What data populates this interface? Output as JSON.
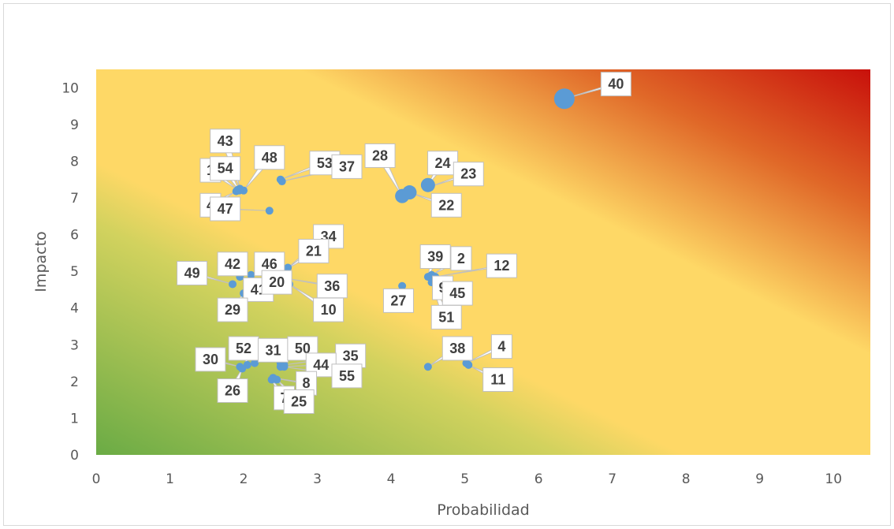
{
  "chart_data": {
    "type": "scatter",
    "title": "",
    "xlabel": "Probabilidad",
    "ylabel": "Impacto",
    "xlim": [
      0,
      10.5
    ],
    "ylim": [
      0,
      10.5
    ],
    "xticks": [
      "0",
      "1",
      "2",
      "3",
      "4",
      "5",
      "6",
      "7",
      "8",
      "9",
      "10"
    ],
    "yticks": [
      "0",
      "1",
      "2",
      "3",
      "4",
      "5",
      "6",
      "7",
      "8",
      "9",
      "10"
    ],
    "background": "green-yellow-red risk gradient (low bottom-left, high top-right)",
    "marker_color": "#5b9bd5",
    "points": [
      {
        "id": "40",
        "x": 6.35,
        "y": 9.7,
        "size": "large",
        "label": "40",
        "label_x": 7.05,
        "label_y": 10.1
      },
      {
        "id": "28",
        "x": 4.15,
        "y": 7.05,
        "size": "medium",
        "label": "28",
        "label_x": 3.85,
        "label_y": 8.15
      },
      {
        "id": "22",
        "x": 4.25,
        "y": 7.15,
        "size": "medium",
        "label": "22",
        "label_x": 4.75,
        "label_y": 6.8
      },
      {
        "id": "24",
        "x": 4.5,
        "y": 7.35,
        "size": "medium",
        "label": "24",
        "label_x": 4.7,
        "label_y": 7.95
      },
      {
        "id": "23",
        "x": 4.52,
        "y": 7.3,
        "size": "small",
        "label": "23",
        "label_x": 5.05,
        "label_y": 7.65
      },
      {
        "id": "53",
        "x": 2.5,
        "y": 7.5,
        "size": "small",
        "label": "53",
        "label_x": 3.1,
        "label_y": 7.95
      },
      {
        "id": "37",
        "x": 2.52,
        "y": 7.45,
        "size": "small",
        "label": "37",
        "label_x": 3.4,
        "label_y": 7.85
      },
      {
        "id": "48",
        "x": 2.0,
        "y": 7.2,
        "size": "small",
        "label": "48",
        "label_x": 2.35,
        "label_y": 8.1
      },
      {
        "id": "43",
        "x": 1.95,
        "y": 7.25,
        "size": "small",
        "label": "43",
        "label_x": 1.75,
        "label_y": 8.55
      },
      {
        "id": "1",
        "x": 1.92,
        "y": 7.22,
        "size": "small",
        "label": "1",
        "label_x": 1.55,
        "label_y": 7.75
      },
      {
        "id": "54",
        "x": 1.94,
        "y": 7.2,
        "size": "small",
        "label": "54",
        "label_x": 1.75,
        "label_y": 7.8
      },
      {
        "id": "4b",
        "x": 1.9,
        "y": 7.18,
        "size": "small",
        "label": "4",
        "label_x": 1.55,
        "label_y": 6.8
      },
      {
        "id": "47",
        "x": 2.35,
        "y": 6.65,
        "size": "small",
        "label": "47",
        "label_x": 1.75,
        "label_y": 6.7
      },
      {
        "id": "34",
        "x": 2.6,
        "y": 5.1,
        "size": "small",
        "label": "34",
        "label_x": 3.15,
        "label_y": 5.95
      },
      {
        "id": "21",
        "x": 2.58,
        "y": 5.05,
        "size": "small",
        "label": "21",
        "label_x": 2.95,
        "label_y": 5.55
      },
      {
        "id": "46",
        "x": 2.1,
        "y": 4.9,
        "size": "small",
        "label": "46",
        "label_x": 2.35,
        "label_y": 5.2
      },
      {
        "id": "42",
        "x": 1.95,
        "y": 4.85,
        "size": "small",
        "label": "42",
        "label_x": 1.85,
        "label_y": 5.2
      },
      {
        "id": "49",
        "x": 1.85,
        "y": 4.65,
        "size": "small",
        "label": "49",
        "label_x": 1.3,
        "label_y": 4.95
      },
      {
        "id": "41",
        "x": 2.1,
        "y": 4.75,
        "size": "small",
        "label": "41",
        "label_x": 2.2,
        "label_y": 4.5
      },
      {
        "id": "20",
        "x": 2.55,
        "y": 4.7,
        "size": "small",
        "label": "20",
        "label_x": 2.45,
        "label_y": 4.7
      },
      {
        "id": "36",
        "x": 2.6,
        "y": 4.8,
        "size": "small",
        "label": "36",
        "label_x": 3.2,
        "label_y": 4.6
      },
      {
        "id": "10",
        "x": 2.62,
        "y": 4.65,
        "size": "small",
        "label": "10",
        "label_x": 3.15,
        "label_y": 3.95
      },
      {
        "id": "29",
        "x": 2.0,
        "y": 4.4,
        "size": "small",
        "label": "29",
        "label_x": 1.85,
        "label_y": 3.95
      },
      {
        "id": "27",
        "x": 4.15,
        "y": 4.6,
        "size": "small",
        "label": "27",
        "label_x": 4.1,
        "label_y": 4.2
      },
      {
        "id": "39",
        "x": 4.5,
        "y": 4.85,
        "size": "small",
        "label": "39",
        "label_x": 4.6,
        "label_y": 5.4
      },
      {
        "id": "2",
        "x": 4.55,
        "y": 4.9,
        "size": "small",
        "label": "2",
        "label_x": 4.95,
        "label_y": 5.35
      },
      {
        "id": "12",
        "x": 4.6,
        "y": 4.85,
        "size": "small",
        "label": "12",
        "label_x": 5.5,
        "label_y": 5.15
      },
      {
        "id": "9",
        "x": 4.62,
        "y": 4.8,
        "size": "small",
        "label": "9",
        "label_x": 4.7,
        "label_y": 4.55
      },
      {
        "id": "45",
        "x": 4.58,
        "y": 4.75,
        "size": "small",
        "label": "45",
        "label_x": 4.9,
        "label_y": 4.4
      },
      {
        "id": "51",
        "x": 4.55,
        "y": 4.7,
        "size": "small",
        "label": "51",
        "label_x": 4.75,
        "label_y": 3.75
      },
      {
        "id": "38",
        "x": 4.5,
        "y": 2.4,
        "size": "small",
        "label": "38",
        "label_x": 4.9,
        "label_y": 2.9
      },
      {
        "id": "4",
        "x": 5.02,
        "y": 2.5,
        "size": "small",
        "label": "4",
        "label_x": 5.5,
        "label_y": 2.95
      },
      {
        "id": "11",
        "x": 5.05,
        "y": 2.45,
        "size": "small",
        "label": "11",
        "label_x": 5.45,
        "label_y": 2.05
      },
      {
        "id": "52",
        "x": 2.05,
        "y": 2.45,
        "size": "small",
        "label": "52",
        "label_x": 2.0,
        "label_y": 2.9
      },
      {
        "id": "31",
        "x": 2.15,
        "y": 2.5,
        "size": "small",
        "label": "31",
        "label_x": 2.4,
        "label_y": 2.85
      },
      {
        "id": "50",
        "x": 2.5,
        "y": 2.5,
        "size": "small",
        "label": "50",
        "label_x": 2.8,
        "label_y": 2.9
      },
      {
        "id": "35",
        "x": 2.55,
        "y": 2.45,
        "size": "small",
        "label": "35",
        "label_x": 3.45,
        "label_y": 2.7
      },
      {
        "id": "44",
        "x": 2.5,
        "y": 2.4,
        "size": "small",
        "label": "44",
        "label_x": 3.05,
        "label_y": 2.45
      },
      {
        "id": "55",
        "x": 2.55,
        "y": 2.4,
        "size": "small",
        "label": "55",
        "label_x": 3.4,
        "label_y": 2.15
      },
      {
        "id": "30",
        "x": 1.95,
        "y": 2.4,
        "size": "small",
        "label": "30",
        "label_x": 1.55,
        "label_y": 2.6
      },
      {
        "id": "26",
        "x": 1.98,
        "y": 2.35,
        "size": "small",
        "label": "26",
        "label_x": 1.85,
        "label_y": 1.75
      },
      {
        "id": "8",
        "x": 2.4,
        "y": 2.1,
        "size": "small",
        "label": "8",
        "label_x": 2.85,
        "label_y": 1.95
      },
      {
        "id": "7",
        "x": 2.38,
        "y": 2.05,
        "size": "small",
        "label": "7",
        "label_x": 2.55,
        "label_y": 1.55
      },
      {
        "id": "25",
        "x": 2.45,
        "y": 2.05,
        "size": "small",
        "label": "25",
        "label_x": 2.75,
        "label_y": 1.45
      }
    ]
  }
}
